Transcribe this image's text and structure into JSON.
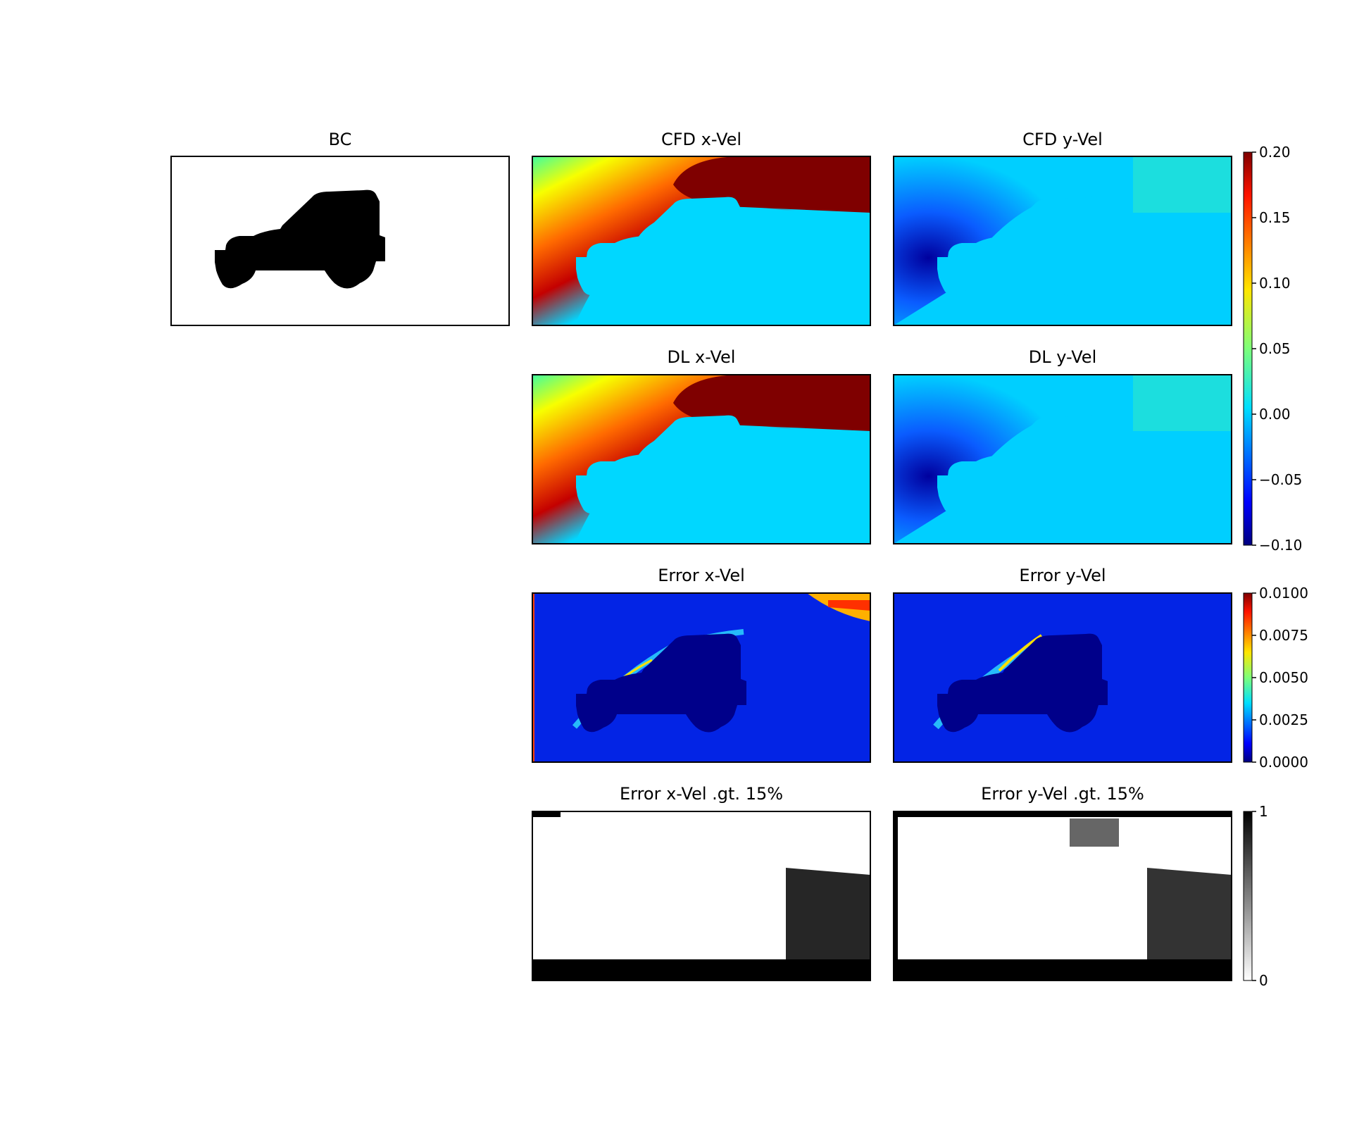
{
  "chart_data": [
    {
      "type": "heatmap",
      "title": "BC",
      "cmap": "binary",
      "description_values": "binary boundary-condition mask, 1 = car body"
    },
    {
      "type": "heatmap",
      "title": "CFD x-Vel",
      "cmap": "jet",
      "vmin": -0.1,
      "vmax": 0.2
    },
    {
      "type": "heatmap",
      "title": "CFD y-Vel",
      "cmap": "jet",
      "vmin": -0.1,
      "vmax": 0.2
    },
    {
      "type": "heatmap",
      "title": "DL x-Vel",
      "cmap": "jet",
      "vmin": -0.1,
      "vmax": 0.2
    },
    {
      "type": "heatmap",
      "title": "DL y-Vel",
      "cmap": "jet",
      "vmin": -0.1,
      "vmax": 0.2
    },
    {
      "type": "heatmap",
      "title": "Error x-Vel",
      "cmap": "jet",
      "vmin": 0,
      "vmax": 0.01
    },
    {
      "type": "heatmap",
      "title": "Error y-Vel",
      "cmap": "jet",
      "vmin": 0,
      "vmax": 0.01
    },
    {
      "type": "heatmap",
      "title": "Error x-Vel .gt. 15%",
      "cmap": "binary",
      "vmin": 0,
      "vmax": 1
    },
    {
      "type": "heatmap",
      "title": "Error y-Vel .gt. 15%",
      "cmap": "binary",
      "vmin": 0,
      "vmax": 1
    }
  ],
  "colorbars": {
    "velocity": {
      "ticks": [
        "0.20",
        "0.15",
        "0.10",
        "0.05",
        "0.00",
        "−0.05",
        "−0.10"
      ],
      "values": [
        0.2,
        0.15,
        0.1,
        0.05,
        0.0,
        -0.05,
        -0.1
      ],
      "min": -0.1,
      "max": 0.2
    },
    "error": {
      "ticks": [
        "0.0100",
        "0.0075",
        "0.0050",
        "0.0025",
        "0.0000"
      ],
      "values": [
        0.01,
        0.0075,
        0.005,
        0.0025,
        0.0
      ],
      "min": 0,
      "max": 0.01
    },
    "binary": {
      "ticks": [
        "1",
        "0"
      ],
      "values": [
        1,
        0
      ],
      "min": 0,
      "max": 1
    }
  },
  "colors": {
    "jet_low": "#00007f",
    "jet_mid": "#7dff7a",
    "jet_high": "#7f0000",
    "body": "#000000",
    "background": "#ffffff"
  }
}
